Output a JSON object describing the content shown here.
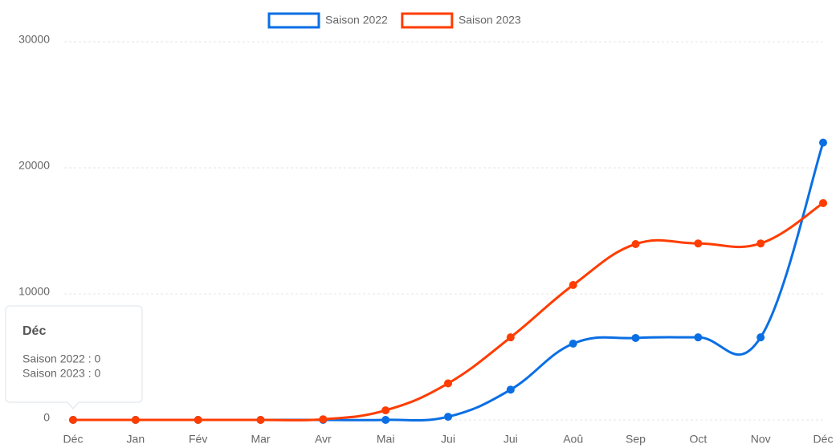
{
  "chart_data": {
    "type": "line",
    "categories": [
      "Déc",
      "Jan",
      "Fév",
      "Mar",
      "Avr",
      "Mai",
      "Jui",
      "Jui",
      "Aoû",
      "Sep",
      "Oct",
      "Nov",
      "Déc"
    ],
    "series": [
      {
        "name": "Saison 2022",
        "color": "#0b6fe4",
        "values": [
          0,
          0,
          0,
          0,
          0,
          0,
          250,
          2400,
          6050,
          6500,
          6550,
          6550,
          22000
        ]
      },
      {
        "name": "Saison 2023",
        "color": "#ff3d00",
        "values": [
          0,
          0,
          0,
          0,
          50,
          760,
          2900,
          6550,
          10700,
          13950,
          14000,
          14000,
          17200
        ]
      }
    ],
    "ylim": [
      0,
      30000
    ],
    "yticks": [
      0,
      10000,
      20000,
      30000
    ],
    "grid": true,
    "legend": "top",
    "tooltip": {
      "title": "Déc",
      "lines": [
        "Saison 2022 : 0",
        "Saison 2023 : 0"
      ]
    }
  }
}
